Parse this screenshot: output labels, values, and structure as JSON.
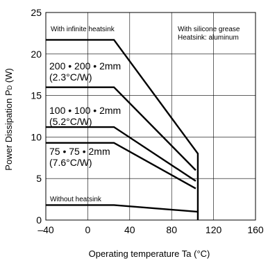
{
  "chart_data": {
    "type": "line",
    "xlabel": "Operating temperature   Ta (°C)",
    "ylabel": "Power Dissipation   P",
    "ylabel_sub": "D",
    "ylabel_unit": " (W)",
    "xlim": [
      -40,
      160
    ],
    "ylim": [
      0,
      25
    ],
    "x_ticks": [
      -40,
      0,
      40,
      80,
      120,
      160
    ],
    "y_ticks": [
      0,
      5,
      10,
      15,
      20,
      25
    ],
    "x_tick_labels": [
      "–40",
      "0",
      "40",
      "80",
      "120",
      "160"
    ],
    "y_tick_labels": [
      "0",
      "5",
      "10",
      "15",
      "20",
      "25"
    ],
    "grid": true,
    "series": [
      {
        "name": "With infinite heatsink",
        "x": [
          -40,
          25,
          105,
          105
        ],
        "y": [
          21.7,
          21.7,
          8,
          0
        ]
      },
      {
        "name": "200 • 200 • 2mm (2.3°C/W)",
        "x": [
          -40,
          25,
          103
        ],
        "y": [
          16,
          16,
          6
        ]
      },
      {
        "name": "100 • 100 • 2mm (5.2°C/W)",
        "x": [
          -40,
          25,
          103
        ],
        "y": [
          11.2,
          11.2,
          4.7
        ]
      },
      {
        "name": "75 • 75 • 2mm (7.6°C/W)",
        "x": [
          -40,
          25,
          103
        ],
        "y": [
          9.3,
          9.3,
          3.8
        ]
      },
      {
        "name": "Without heatsink",
        "x": [
          -40,
          25,
          105
        ],
        "y": [
          1.8,
          1.8,
          1
        ]
      }
    ],
    "annotations": {
      "infinite": "With infinite heatsink",
      "grease_line1": "With silicone grease",
      "grease_line2": "Heatsink: aluminum",
      "hs200_line1": "200 • 200 • 2mm",
      "hs200_line2": "(2.3°C/W)",
      "hs100_line1": "100 • 100 • 2mm",
      "hs100_line2": "(5.2°C/W)",
      "hs75_line1": "75 • 75 • 2mm",
      "hs75_line2": "(7.6°C/W)",
      "without": "Without heatsink"
    }
  }
}
